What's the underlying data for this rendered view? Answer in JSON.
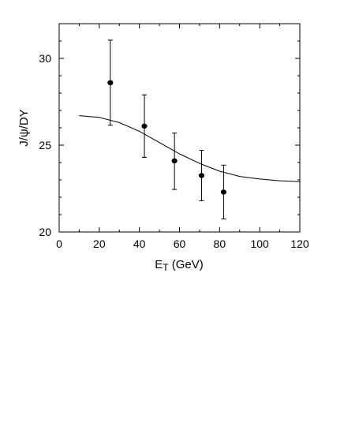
{
  "chart_data": {
    "type": "scatter",
    "title": "",
    "xlabel_main": "E",
    "xlabel_sub": "T",
    "xlabel_unit": " (GeV)",
    "ylabel": "J/ψ/DY",
    "xlim": [
      0,
      120
    ],
    "ylim": [
      20,
      32
    ],
    "x_ticks": [
      0,
      20,
      40,
      60,
      80,
      100,
      120
    ],
    "y_ticks": [
      20,
      25,
      30
    ],
    "grid": false,
    "series": [
      {
        "type": "scatter",
        "x": [
          25.5,
          42.5,
          57.5,
          71,
          82
        ],
        "y": [
          28.6,
          26.1,
          24.1,
          23.25,
          22.3
        ],
        "yerr_low": [
          26.15,
          24.3,
          22.45,
          21.8,
          20.75
        ],
        "yerr_high": [
          31.05,
          27.9,
          25.7,
          24.7,
          23.85
        ]
      },
      {
        "type": "line",
        "x": [
          10,
          20,
          30,
          40,
          50,
          60,
          70,
          80,
          90,
          100,
          110,
          120
        ],
        "y": [
          26.7,
          26.6,
          26.3,
          25.8,
          25.15,
          24.5,
          23.95,
          23.5,
          23.2,
          23.05,
          22.95,
          22.9
        ]
      }
    ]
  },
  "colors": {
    "ink": "#000000",
    "background": "#ffffff"
  }
}
